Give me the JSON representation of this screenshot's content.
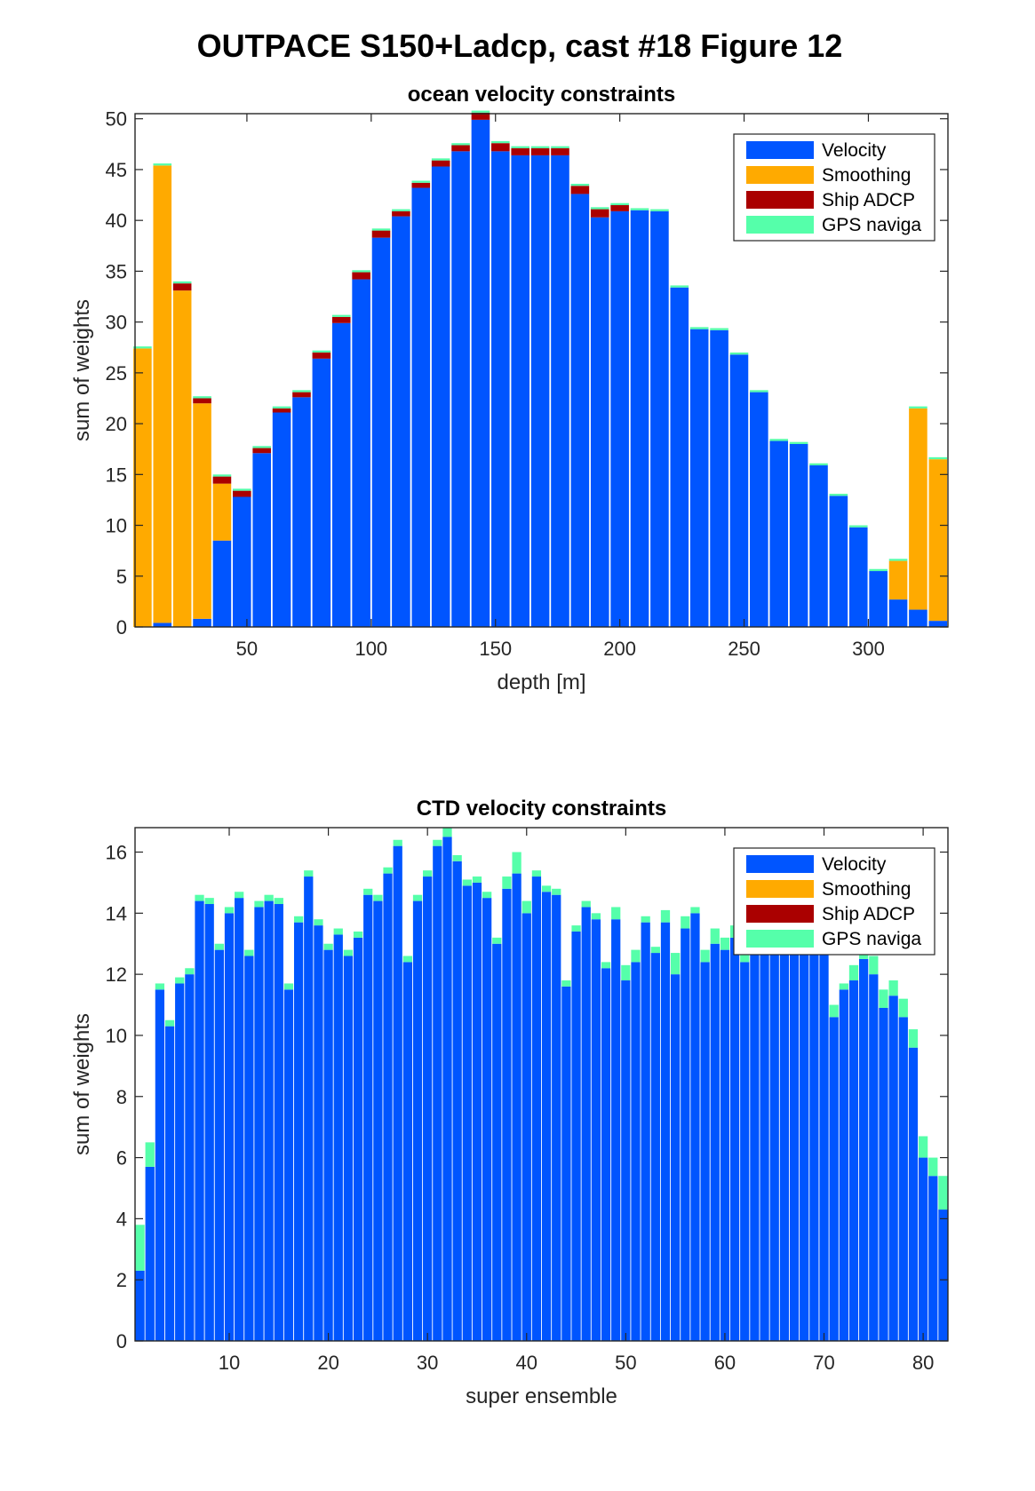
{
  "figure_title": "OUTPACE S150+Ladcp, cast #18  Figure 12",
  "legend_labels": [
    "Velocity",
    "Smoothing",
    "Ship ADCP",
    "GPS naviga"
  ],
  "colors": {
    "Velocity": "#0055ff",
    "Smoothing": "#ffaa00",
    "Ship ADCP": "#aa0000",
    "GPS naviga": "#55ffaa"
  },
  "chart_data": [
    {
      "type": "bar",
      "stacked": true,
      "title": "ocean velocity constraints",
      "xlabel": "depth [m]",
      "ylabel": "sum of weights",
      "xlim": [
        5,
        332
      ],
      "ylim": [
        0,
        50.5
      ],
      "xticks": [
        50,
        100,
        150,
        200,
        250,
        300
      ],
      "yticks": [
        0,
        5,
        10,
        15,
        20,
        25,
        30,
        35,
        40,
        45,
        50
      ],
      "legend_position": "top-right",
      "x": [
        8,
        16,
        24,
        32,
        40,
        48,
        56,
        64,
        72,
        80,
        88,
        96,
        104,
        112,
        120,
        128,
        136,
        144,
        152,
        160,
        168,
        176,
        184,
        192,
        200,
        208,
        216,
        224,
        232,
        240,
        248,
        256,
        264,
        272,
        280,
        288,
        296,
        304,
        312,
        320,
        328
      ],
      "series": [
        {
          "name": "Velocity",
          "values": [
            0,
            0.4,
            0,
            0.8,
            8.5,
            12.8,
            17.1,
            21.1,
            22.6,
            26.4,
            29.9,
            34.2,
            38.3,
            40.4,
            43.2,
            45.3,
            46.8,
            49.9,
            46.8,
            46.4,
            46.4,
            46.4,
            42.6,
            40.3,
            40.9,
            41.0,
            40.9,
            33.4,
            29.3,
            29.2,
            26.8,
            23.1,
            18.3,
            18.0,
            15.9,
            12.9,
            9.8,
            5.5,
            2.7,
            1.7,
            0.6
          ]
        },
        {
          "name": "Smoothing",
          "values": [
            27.4,
            45.0,
            33.1,
            21.2,
            5.6,
            0,
            0,
            0,
            0,
            0,
            0,
            0,
            0,
            0,
            0,
            0,
            0,
            0,
            0,
            0,
            0,
            0,
            0,
            0,
            0,
            0,
            0,
            0,
            0,
            0,
            0,
            0,
            0,
            0,
            0,
            0,
            0,
            0,
            3.8,
            19.8,
            15.9
          ]
        },
        {
          "name": "Ship ADCP",
          "values": [
            0,
            0,
            0.7,
            0.5,
            0.7,
            0.6,
            0.5,
            0.4,
            0.5,
            0.6,
            0.6,
            0.7,
            0.7,
            0.5,
            0.5,
            0.6,
            0.6,
            0.7,
            0.8,
            0.7,
            0.7,
            0.7,
            0.8,
            0.8,
            0.6,
            0,
            0,
            0,
            0,
            0,
            0,
            0,
            0,
            0,
            0,
            0,
            0,
            0,
            0,
            0,
            0
          ]
        },
        {
          "name": "GPS naviga",
          "values": [
            0.2,
            0.2,
            0.2,
            0.2,
            0.2,
            0.2,
            0.2,
            0.2,
            0.2,
            0.2,
            0.2,
            0.2,
            0.2,
            0.2,
            0.2,
            0.2,
            0.2,
            0.2,
            0.2,
            0.2,
            0.2,
            0.2,
            0.2,
            0.2,
            0.2,
            0.2,
            0.2,
            0.2,
            0.2,
            0.2,
            0.2,
            0.2,
            0.2,
            0.2,
            0.2,
            0.2,
            0.2,
            0.2,
            0.2,
            0.2,
            0.2
          ]
        }
      ]
    },
    {
      "type": "bar",
      "stacked": true,
      "title": "CTD velocity constraints",
      "xlabel": "super ensemble",
      "ylabel": "sum of weights",
      "xlim": [
        0.5,
        82.5
      ],
      "ylim": [
        0,
        16.8
      ],
      "xticks": [
        10,
        20,
        30,
        40,
        50,
        60,
        70,
        80
      ],
      "yticks": [
        0,
        2,
        4,
        6,
        8,
        10,
        12,
        14,
        16
      ],
      "legend_position": "top-right",
      "x": [
        1,
        2,
        3,
        4,
        5,
        6,
        7,
        8,
        9,
        10,
        11,
        12,
        13,
        14,
        15,
        16,
        17,
        18,
        19,
        20,
        21,
        22,
        23,
        24,
        25,
        26,
        27,
        28,
        29,
        30,
        31,
        32,
        33,
        34,
        35,
        36,
        37,
        38,
        39,
        40,
        41,
        42,
        43,
        44,
        45,
        46,
        47,
        48,
        49,
        50,
        51,
        52,
        53,
        54,
        55,
        56,
        57,
        58,
        59,
        60,
        61,
        62,
        63,
        64,
        65,
        66,
        67,
        68,
        69,
        70,
        71,
        72,
        73,
        74,
        75,
        76,
        77,
        78,
        79,
        80,
        81,
        82
      ],
      "series": [
        {
          "name": "Velocity",
          "values": [
            2.3,
            5.7,
            11.5,
            10.3,
            11.7,
            12.0,
            14.4,
            14.3,
            12.8,
            14.0,
            14.5,
            12.6,
            14.2,
            14.4,
            14.3,
            11.5,
            13.7,
            15.2,
            13.6,
            12.8,
            13.3,
            12.6,
            13.2,
            14.6,
            14.4,
            15.3,
            16.2,
            12.4,
            14.4,
            15.2,
            16.2,
            16.5,
            15.7,
            14.9,
            15.0,
            14.5,
            13.0,
            14.8,
            15.3,
            14.0,
            15.2,
            14.7,
            14.6,
            11.6,
            13.4,
            14.2,
            13.8,
            12.2,
            13.8,
            11.8,
            12.4,
            13.7,
            12.7,
            13.7,
            12.0,
            13.5,
            14.0,
            12.4,
            13.0,
            12.8,
            13.2,
            12.4,
            13.3,
            13.7,
            13.2,
            13.9,
            13.5,
            14.5,
            13.2,
            12.9,
            10.6,
            11.5,
            11.8,
            12.5,
            12.0,
            10.9,
            11.3,
            10.6,
            9.6,
            6.0,
            5.4,
            4.3
          ]
        },
        {
          "name": "Smoothing",
          "values": [
            0,
            0,
            0,
            0,
            0,
            0,
            0,
            0,
            0,
            0,
            0,
            0,
            0,
            0,
            0,
            0,
            0,
            0,
            0,
            0,
            0,
            0,
            0,
            0,
            0,
            0,
            0,
            0,
            0,
            0,
            0,
            0,
            0,
            0,
            0,
            0,
            0,
            0,
            0,
            0,
            0,
            0,
            0,
            0,
            0,
            0,
            0,
            0,
            0,
            0,
            0,
            0,
            0,
            0,
            0,
            0,
            0,
            0,
            0,
            0,
            0,
            0,
            0,
            0,
            0,
            0,
            0,
            0,
            0,
            0,
            0,
            0,
            0,
            0,
            0,
            0,
            0,
            0,
            0,
            0,
            0,
            0
          ]
        },
        {
          "name": "Ship ADCP",
          "values": [
            0,
            0,
            0,
            0,
            0,
            0,
            0,
            0,
            0,
            0,
            0,
            0,
            0,
            0,
            0,
            0,
            0,
            0,
            0,
            0,
            0,
            0,
            0,
            0,
            0,
            0,
            0,
            0,
            0,
            0,
            0,
            0,
            0,
            0,
            0,
            0,
            0,
            0,
            0,
            0,
            0,
            0,
            0,
            0,
            0,
            0,
            0,
            0,
            0,
            0,
            0,
            0,
            0,
            0,
            0,
            0,
            0,
            0,
            0,
            0,
            0,
            0,
            0,
            0,
            0,
            0,
            0,
            0,
            0,
            0,
            0,
            0,
            0,
            0,
            0,
            0,
            0,
            0,
            0,
            0,
            0,
            0
          ]
        },
        {
          "name": "GPS naviga",
          "values": [
            1.5,
            0.8,
            0.2,
            0.2,
            0.2,
            0.2,
            0.2,
            0.2,
            0.2,
            0.2,
            0.2,
            0.2,
            0.2,
            0.2,
            0.2,
            0.2,
            0.2,
            0.2,
            0.2,
            0.2,
            0.2,
            0.2,
            0.2,
            0.2,
            0.2,
            0.2,
            0.2,
            0.2,
            0.2,
            0.2,
            0.2,
            0.3,
            0.2,
            0.2,
            0.2,
            0.2,
            0.2,
            0.4,
            0.7,
            0.4,
            0.2,
            0.2,
            0.2,
            0.2,
            0.2,
            0.2,
            0.2,
            0.2,
            0.4,
            0.5,
            0.4,
            0.2,
            0.2,
            0.4,
            0.7,
            0.4,
            0.2,
            0.4,
            0.5,
            0.4,
            0.4,
            0.3,
            0.4,
            0.3,
            0.4,
            0.4,
            0.4,
            0.3,
            0.4,
            0.3,
            0.4,
            0.2,
            0.5,
            0.5,
            0.6,
            0.6,
            0.5,
            0.6,
            0.6,
            0.7,
            0.6,
            1.1
          ]
        }
      ]
    }
  ]
}
